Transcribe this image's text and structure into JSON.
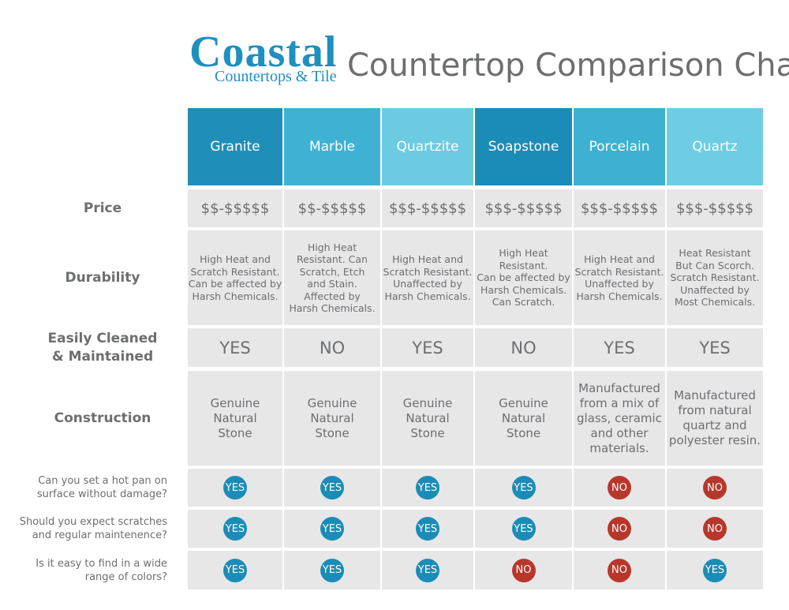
{
  "header": {
    "logo_name": "Coastal",
    "logo_tagline": "Countertops & Tile",
    "title": "Countertop Comparison Chart"
  },
  "table": {
    "columns": [
      {
        "name": "Granite",
        "color": "#1f8fb9"
      },
      {
        "name": "Marble",
        "color": "#3fb2d3"
      },
      {
        "name": "Quartzite",
        "color": "#6ccbe1"
      },
      {
        "name": "Soapstone",
        "color": "#1b8cb7"
      },
      {
        "name": "Porcelain",
        "color": "#3cb1d2"
      },
      {
        "name": "Quartz",
        "color": "#6dcde3"
      }
    ],
    "rows": [
      {
        "label": [
          "Price"
        ],
        "kind": "text",
        "cells": [
          [
            "$$-$$$$$"
          ],
          [
            "$$-$$$$$"
          ],
          [
            "$$$-$$$$$"
          ],
          [
            "$$$-$$$$$"
          ],
          [
            "$$$-$$$$$"
          ],
          [
            "$$$-$$$$$"
          ]
        ]
      },
      {
        "label": [
          "Durability"
        ],
        "kind": "text",
        "cells": [
          [
            "High Heat and",
            "Scratch Resistant.",
            "Can be affected by",
            "Harsh Chemicals."
          ],
          [
            "High Heat",
            "Resistant. Can",
            "Scratch, Etch",
            "and Stain.",
            "Affected by",
            "Harsh Chemicals."
          ],
          [
            "High Heat and",
            "Scratch Resistant.",
            "Unaffected by",
            "Harsh Chemicals."
          ],
          [
            "High Heat",
            "Resistant.",
            "Can be affected by",
            "Harsh Chemicals.",
            "Can Scratch."
          ],
          [
            "High Heat and",
            "Scratch Resistant.",
            "Unaffected by",
            "Harsh Chemicals."
          ],
          [
            "Heat Resistant",
            "But Can Scorch.",
            "Scratch Resistant.",
            "Unaffected by",
            "Most Chemicals."
          ]
        ]
      },
      {
        "label": [
          "Easily Cleaned",
          "& Maintained"
        ],
        "kind": "text",
        "cells": [
          [
            "YES"
          ],
          [
            "NO"
          ],
          [
            "YES"
          ],
          [
            "NO"
          ],
          [
            "YES"
          ],
          [
            "YES"
          ]
        ]
      },
      {
        "label": [
          "Construction"
        ],
        "kind": "text",
        "cells": [
          [
            "Genuine",
            "Natural",
            "Stone"
          ],
          [
            "Genuine",
            "Natural",
            "Stone"
          ],
          [
            "Genuine",
            "Natural",
            "Stone"
          ],
          [
            "Genuine",
            "Natural",
            "Stone"
          ],
          [
            "Manufactured",
            "from a mix of",
            "glass, ceramic",
            "and other",
            "materials."
          ],
          [
            "Manufactured",
            "from natural",
            "quartz and",
            "polyester resin."
          ]
        ]
      },
      {
        "label": [
          "Can you set a hot pan on",
          "surface without damage?"
        ],
        "kind": "badge",
        "cells": [
          {
            "text": "YES",
            "color": "#1b8cb7"
          },
          {
            "text": "YES",
            "color": "#1b8cb7"
          },
          {
            "text": "YES",
            "color": "#1b8cb7"
          },
          {
            "text": "YES",
            "color": "#1b8cb7"
          },
          {
            "text": "NO",
            "color": "#b7372b"
          },
          {
            "text": "NO",
            "color": "#b7372b"
          }
        ]
      },
      {
        "label": [
          "Should you expect scratches",
          "and regular maintenence?"
        ],
        "kind": "badge",
        "cells": [
          {
            "text": "YES",
            "color": "#1b8cb7"
          },
          {
            "text": "YES",
            "color": "#1b8cb7"
          },
          {
            "text": "YES",
            "color": "#1b8cb7"
          },
          {
            "text": "YES",
            "color": "#1b8cb7"
          },
          {
            "text": "NO",
            "color": "#b7372b"
          },
          {
            "text": "NO",
            "color": "#b7372b"
          }
        ]
      },
      {
        "label": [
          "Is it easy to find in a wide",
          "range of colors?"
        ],
        "kind": "badge",
        "cells": [
          {
            "text": "YES",
            "color": "#1b8cb7"
          },
          {
            "text": "YES",
            "color": "#1b8cb7"
          },
          {
            "text": "YES",
            "color": "#1b8cb7"
          },
          {
            "text": "NO",
            "color": "#b7372b"
          },
          {
            "text": "NO",
            "color": "#b7372b"
          },
          {
            "text": "YES",
            "color": "#1b8cb7"
          }
        ]
      }
    ]
  }
}
